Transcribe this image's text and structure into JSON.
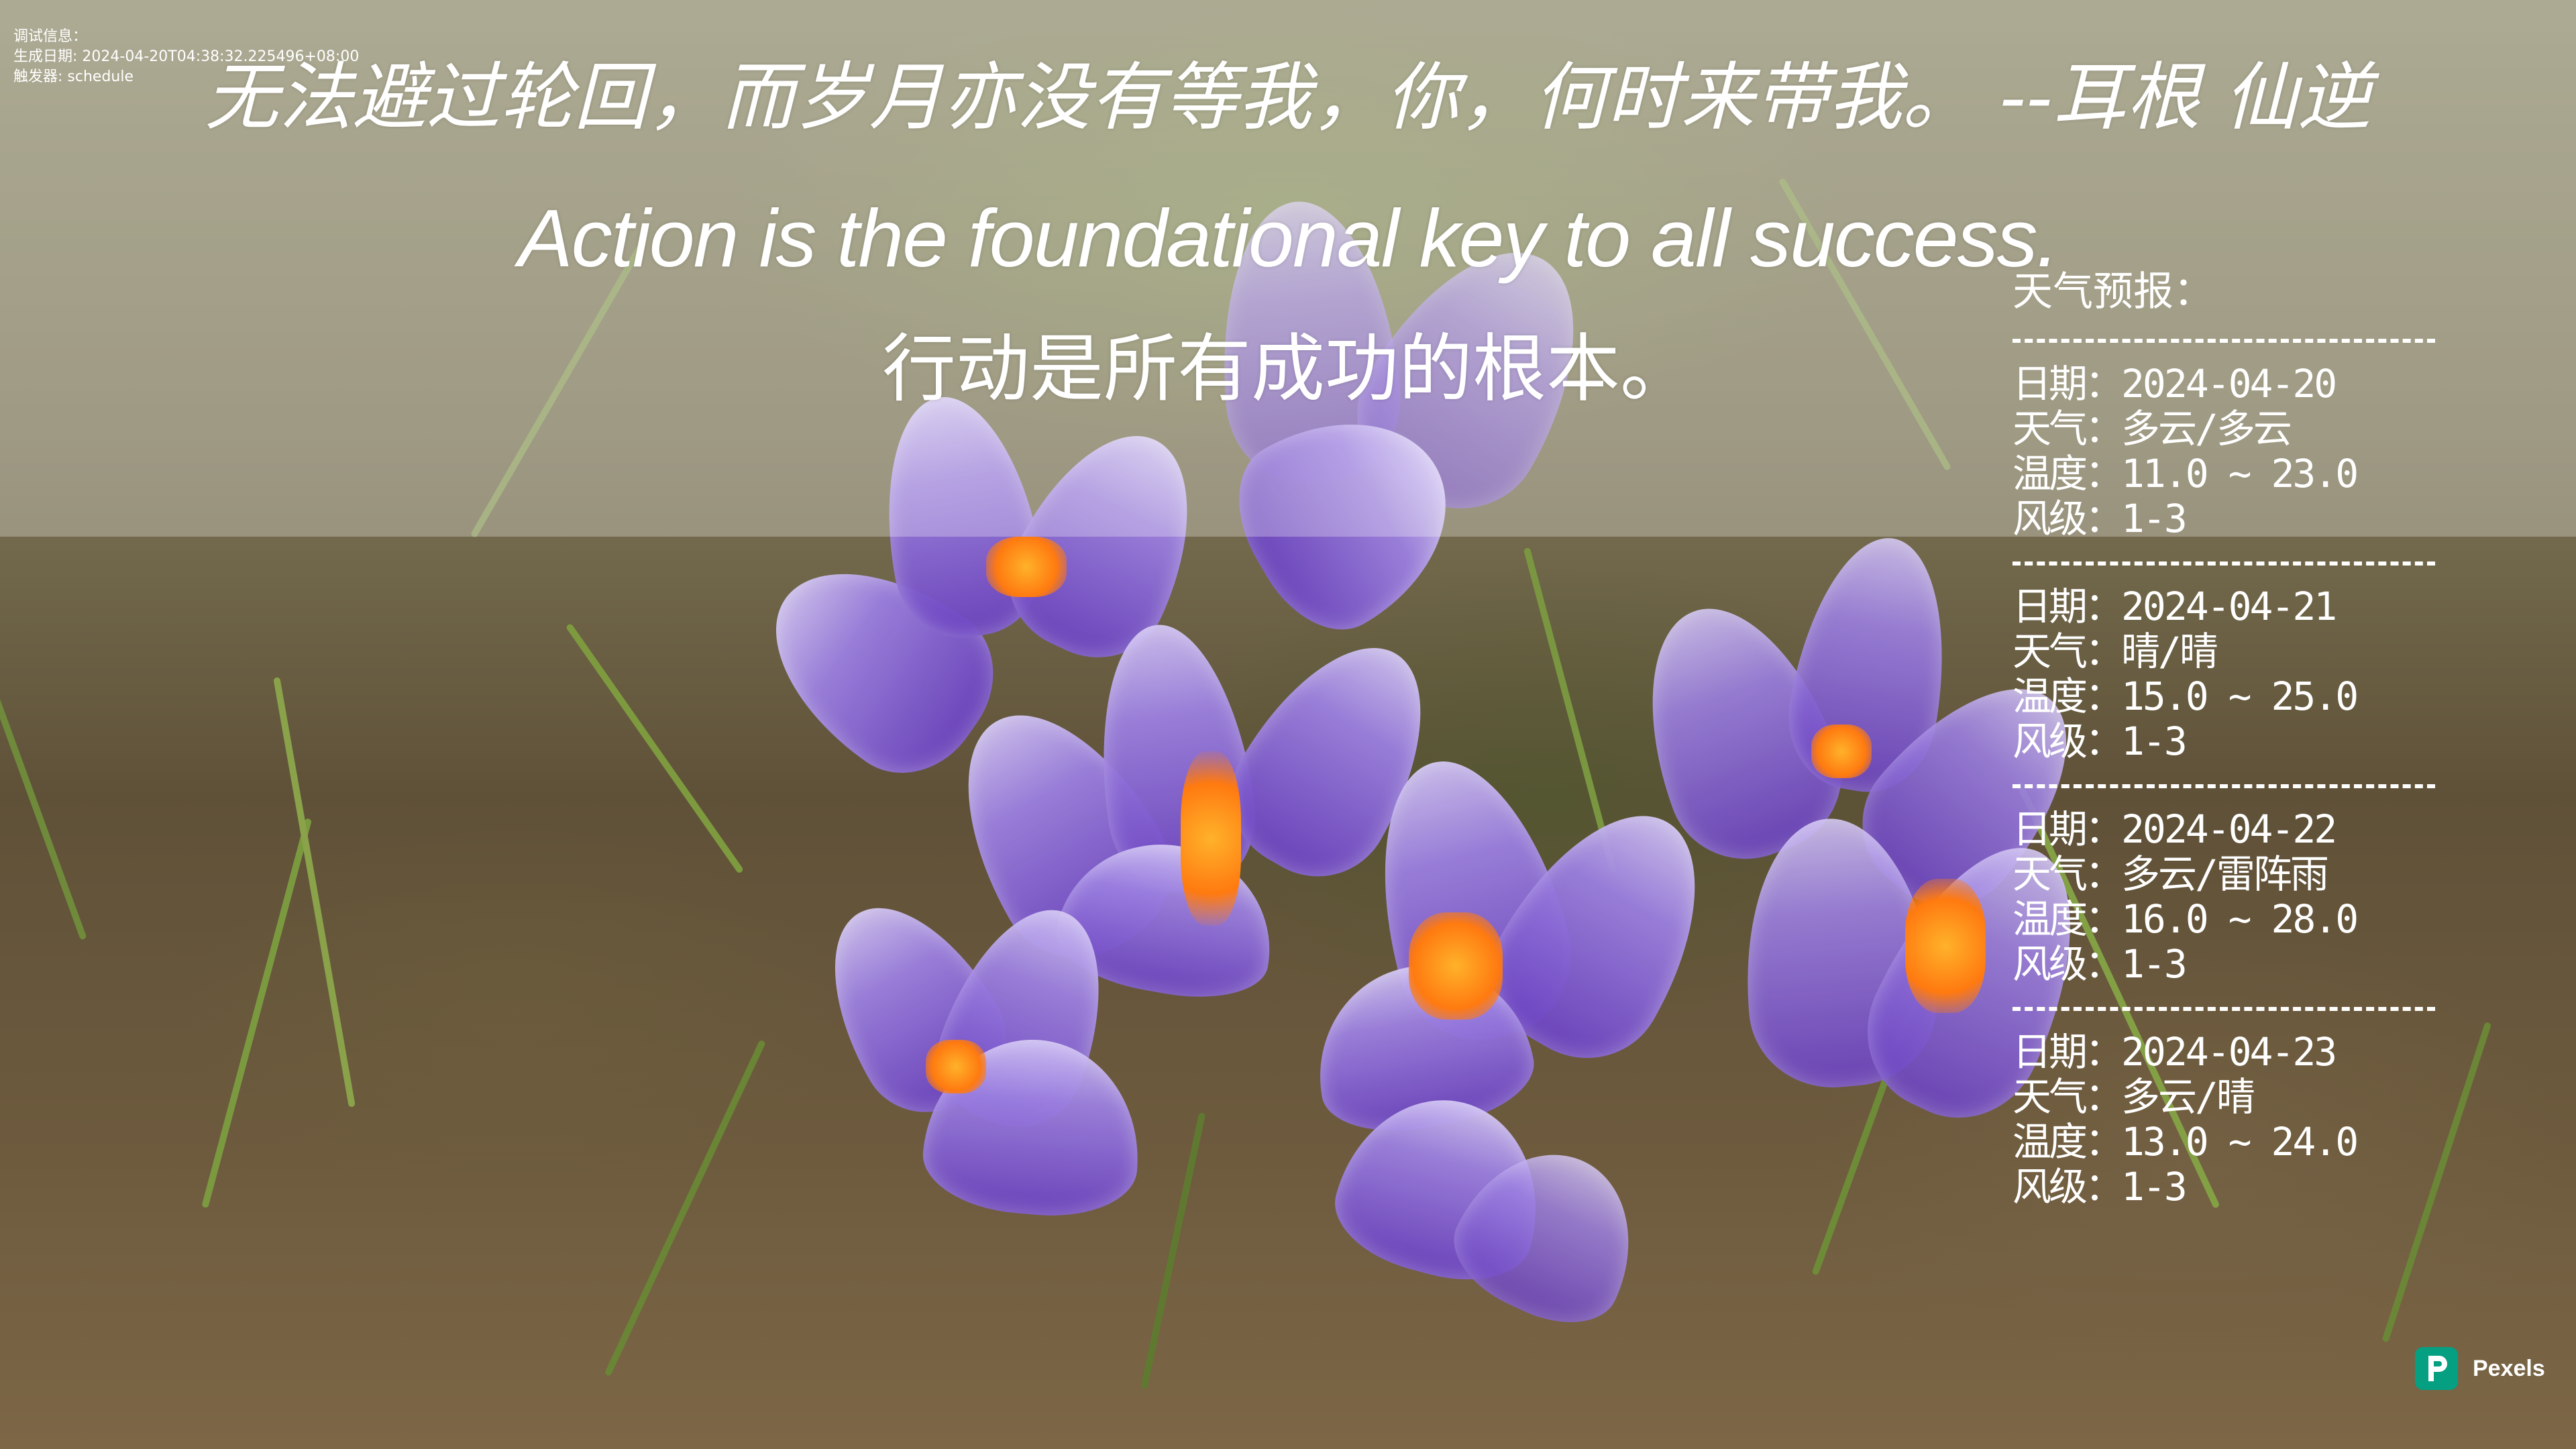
{
  "debug": {
    "line1": "调试信息：",
    "line2": "生成日期: 2024-04-20T04:38:32.225496+08:00",
    "line3": "触发器: schedule"
  },
  "quotes": {
    "chinese": "无法避过轮回，而岁月亦没有等我，你，何时来带我。   --耳根 仙逆",
    "english": "Action is the foundational key to all success.",
    "english_translation": "行动是所有成功的根本。"
  },
  "weather": {
    "title": "天气预报：",
    "separator": "----------------------------",
    "labels": {
      "date": "日期：",
      "weather": "天气：",
      "temperature": "温度：",
      "wind": "风级："
    },
    "days": [
      {
        "date": "2024-04-20",
        "weather": "多云/多云",
        "temperature": "11.0 ~ 23.0",
        "wind": "1-3"
      },
      {
        "date": "2024-04-21",
        "weather": "晴/晴",
        "temperature": "15.0 ~ 25.0",
        "wind": "1-3"
      },
      {
        "date": "2024-04-22",
        "weather": "多云/雷阵雨",
        "temperature": "16.0 ~ 28.0",
        "wind": "1-3"
      },
      {
        "date": "2024-04-23",
        "weather": "多云/晴",
        "temperature": "13.0 ~ 24.0",
        "wind": "1-3"
      }
    ]
  },
  "credit": {
    "brand": "Pexels",
    "logo_letter": "P",
    "brand_color": "#05a081",
    "icon": "pexels-logo-icon"
  }
}
